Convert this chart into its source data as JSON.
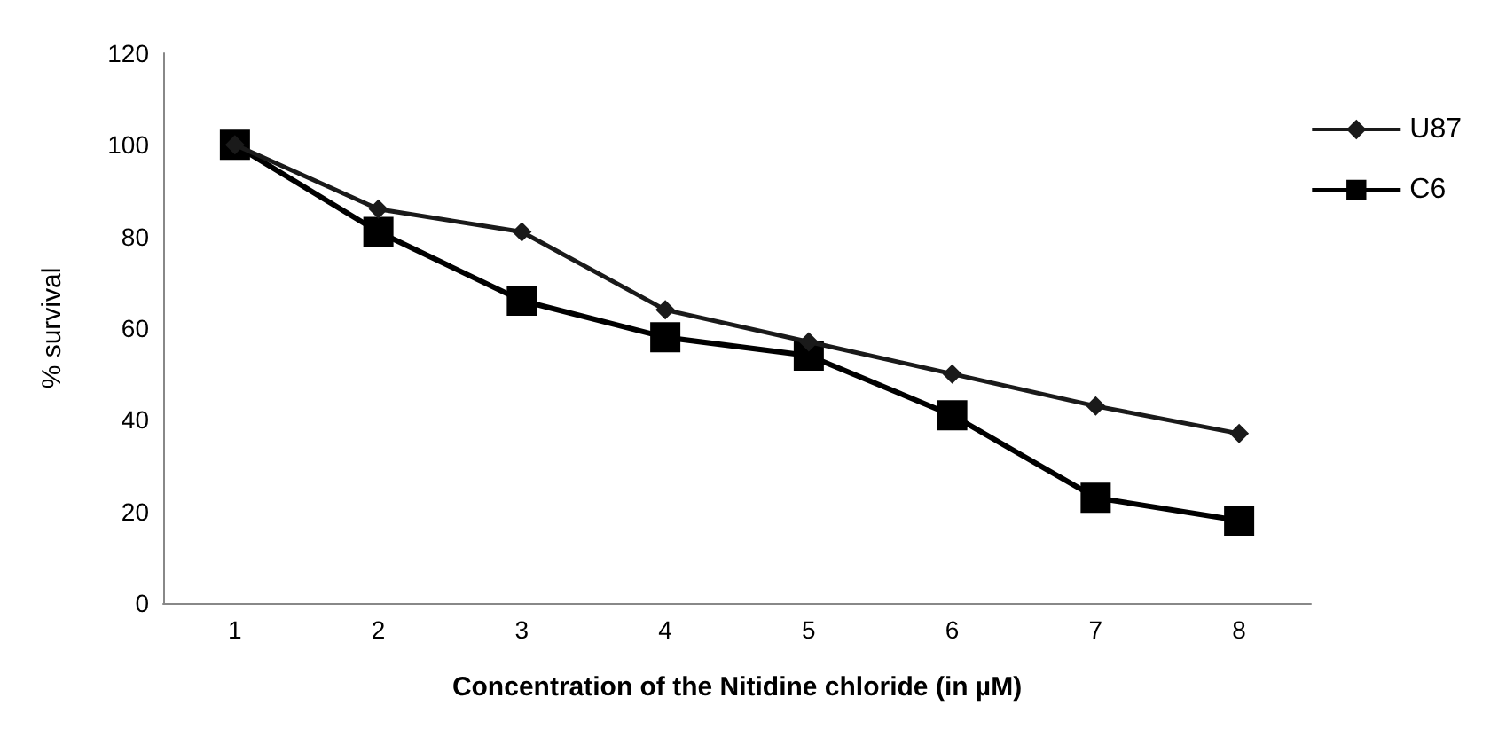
{
  "chart_data": {
    "type": "line",
    "xlabel": "Concentration of the Nitidine chloride (in µM)",
    "ylabel": "% survival",
    "categories": [
      "1",
      "2",
      "3",
      "4",
      "5",
      "6",
      "7",
      "8"
    ],
    "series": [
      {
        "name": "U87",
        "color": "#1a1a1a",
        "marker": "diamond",
        "values": [
          100,
          86,
          81,
          64,
          57,
          50,
          43,
          37
        ]
      },
      {
        "name": "C6",
        "color": "#000000",
        "marker": "square",
        "values": [
          100,
          81,
          66,
          58,
          54,
          41,
          23,
          18
        ]
      }
    ],
    "ylim": [
      0,
      120
    ],
    "yticks": [
      0,
      20,
      40,
      60,
      80,
      100,
      120
    ],
    "grid": false,
    "legend": "right"
  }
}
